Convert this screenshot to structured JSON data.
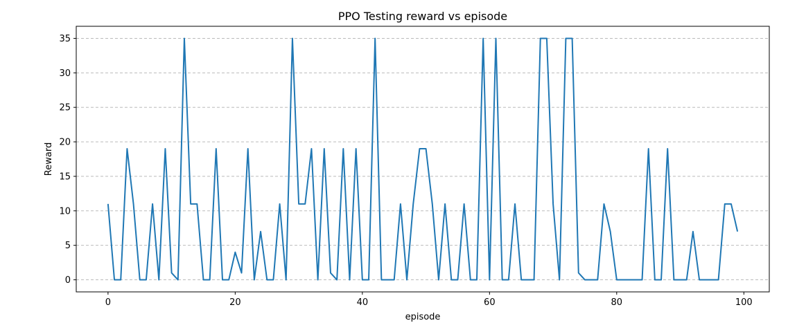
{
  "chart_data": {
    "type": "line",
    "title": "PPO Testing reward vs episode",
    "xlabel": "episode",
    "ylabel": "Reward",
    "xlim": [
      -5,
      104
    ],
    "ylim": [
      -1.75,
      36.75
    ],
    "xticks": [
      0,
      20,
      40,
      60,
      80,
      100
    ],
    "yticks": [
      0,
      5,
      10,
      15,
      20,
      25,
      30,
      35
    ],
    "grid": "y-dashed",
    "series": [
      {
        "color": "#1f77b4",
        "x": [
          0,
          1,
          2,
          3,
          4,
          5,
          6,
          7,
          8,
          9,
          10,
          11,
          12,
          13,
          14,
          15,
          16,
          17,
          18,
          19,
          20,
          21,
          22,
          23,
          24,
          25,
          26,
          27,
          28,
          29,
          30,
          31,
          32,
          33,
          34,
          35,
          36,
          37,
          38,
          39,
          40,
          41,
          42,
          43,
          44,
          45,
          46,
          47,
          48,
          49,
          50,
          51,
          52,
          53,
          54,
          55,
          56,
          57,
          58,
          59,
          60,
          61,
          62,
          63,
          64,
          65,
          66,
          67,
          68,
          69,
          70,
          71,
          72,
          73,
          74,
          75,
          76,
          77,
          78,
          79,
          80,
          81,
          82,
          83,
          84,
          85,
          86,
          87,
          88,
          89,
          90,
          91,
          92,
          93,
          94,
          95,
          96,
          97,
          98,
          99
        ],
        "y": [
          11,
          0,
          0,
          19,
          11,
          0,
          0,
          11,
          0,
          19,
          1,
          0,
          35,
          11,
          11,
          0,
          0,
          19,
          0,
          0,
          4,
          1,
          19,
          0,
          7,
          0,
          0,
          11,
          0,
          35,
          11,
          11,
          19,
          0,
          19,
          1,
          0,
          19,
          0,
          19,
          0,
          0,
          35,
          0,
          0,
          0,
          11,
          0,
          11,
          19,
          19,
          11,
          0,
          11,
          0,
          0,
          11,
          0,
          0,
          35,
          0,
          35,
          0,
          0,
          11,
          0,
          0,
          0,
          35,
          35,
          11,
          0,
          35,
          35,
          1,
          0,
          0,
          0,
          11,
          7,
          0,
          0,
          0,
          0,
          0,
          19,
          0,
          0,
          19,
          0,
          0,
          0,
          7,
          0,
          0,
          0,
          0,
          11,
          11,
          7
        ]
      }
    ]
  }
}
